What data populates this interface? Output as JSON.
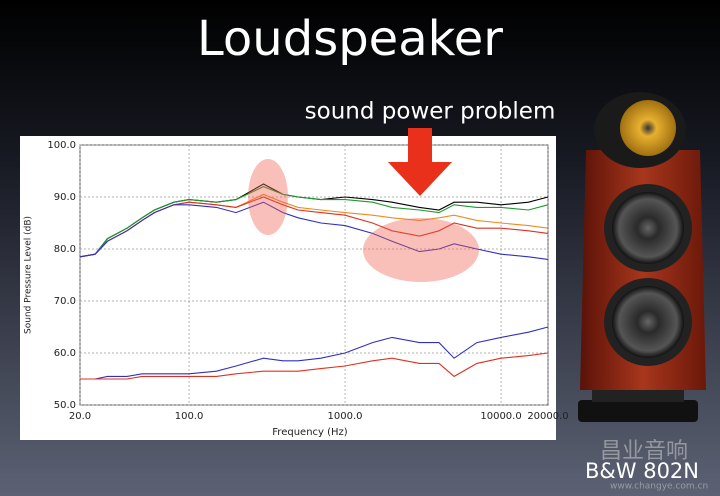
{
  "title": "Loudspeaker",
  "annotation": "sound power problem",
  "caption": "B&W 802N",
  "watermark": {
    "brand": "昌业音响",
    "url": "www.changye.com.cn"
  },
  "chart_data": {
    "type": "line",
    "xlabel": "Frequency (Hz)",
    "ylabel": "Sound Pressure Level (dB)",
    "xscale": "log",
    "x": [
      20,
      25,
      30,
      40,
      50,
      60,
      80,
      100,
      150,
      200,
      300,
      400,
      500,
      700,
      1000,
      1500,
      2000,
      3000,
      4000,
      5000,
      7000,
      10000,
      15000,
      20000
    ],
    "xlim": [
      20,
      20000
    ],
    "ylim": [
      50,
      100
    ],
    "xticks": [
      {
        "value": 20,
        "label": "20.0"
      },
      {
        "value": 100,
        "label": "100.0"
      },
      {
        "value": 1000,
        "label": "1000.0"
      },
      {
        "value": 10000,
        "label": "10000.0"
      },
      {
        "value": 20000,
        "label": "20000.0"
      }
    ],
    "yticks": [
      {
        "value": 50,
        "label": "50.0"
      },
      {
        "value": 60,
        "label": "60.0"
      },
      {
        "value": 70,
        "label": "70.0"
      },
      {
        "value": 80,
        "label": "80.0"
      },
      {
        "value": 90,
        "label": "90.0"
      },
      {
        "value": 100,
        "label": "100.0"
      }
    ],
    "grid": true,
    "series": [
      {
        "color": "#000000",
        "values": [
          78.5,
          79,
          82,
          84,
          86,
          87.5,
          89,
          89.5,
          89,
          89.5,
          92.5,
          90.5,
          90,
          89.5,
          90,
          89.5,
          89,
          88,
          87.5,
          89,
          89,
          88.5,
          89,
          90
        ]
      },
      {
        "color": "#1a9a2a",
        "values": [
          78.5,
          79,
          82,
          84,
          86,
          87.5,
          89,
          89.5,
          89,
          89.5,
          92,
          90.5,
          90,
          89.5,
          89.5,
          89,
          88,
          87.5,
          87,
          88.5,
          88,
          88,
          87.5,
          88.5
        ]
      },
      {
        "color": "#f08a20",
        "values": [
          78.5,
          79,
          81.5,
          83.5,
          85.5,
          87,
          88.5,
          89,
          88.5,
          88,
          90.5,
          89,
          88,
          87.5,
          87,
          86.5,
          86,
          85.5,
          86,
          86.5,
          85.5,
          85,
          84.5,
          84
        ]
      },
      {
        "color": "#e03020",
        "values": [
          78.5,
          79,
          81.5,
          83.5,
          85.5,
          87,
          88.5,
          89,
          88.5,
          88,
          90,
          88.5,
          87.5,
          87,
          86.5,
          85,
          83.5,
          82.5,
          83.5,
          85,
          84,
          84,
          83.5,
          83
        ]
      },
      {
        "color": "#3030c0",
        "values": [
          78.5,
          79,
          81.5,
          83.5,
          85.5,
          87,
          88.5,
          88.5,
          88,
          87,
          89,
          87,
          86,
          85,
          84.5,
          83,
          81.5,
          79.5,
          80,
          81,
          80,
          79,
          78.5,
          78
        ]
      },
      {
        "color": "#3030c0",
        "values": [
          55,
          55,
          55.5,
          55.5,
          56,
          56,
          56,
          56,
          56.5,
          57.5,
          59,
          58.5,
          58.5,
          59,
          60,
          62,
          63,
          62,
          62,
          59,
          62,
          63,
          64,
          65
        ]
      },
      {
        "color": "#e03020",
        "values": [
          55,
          55,
          55,
          55,
          55.5,
          55.5,
          55.5,
          55.5,
          55.5,
          56,
          56.5,
          56.5,
          56.5,
          57,
          57.5,
          58.5,
          59,
          58,
          58,
          55.5,
          58,
          59,
          59.5,
          60
        ]
      }
    ]
  }
}
